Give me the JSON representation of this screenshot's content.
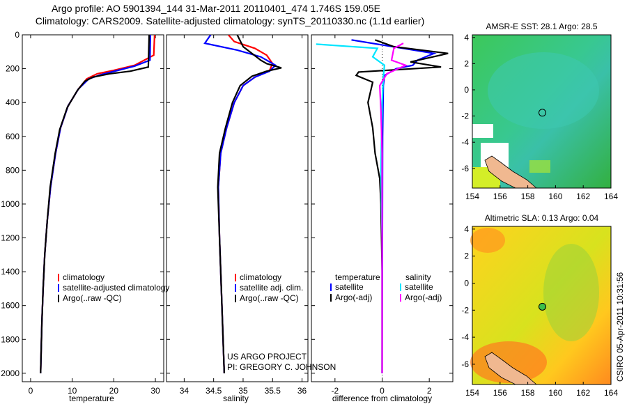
{
  "header": {
    "title_line1": "Argo profile: AO 5901394_144 31-Mar-2011 20110401_474 1.746S 159.05E",
    "title_line2": "Climatology: CARS2009. Satellite-adjusted climatology: synTS_20110330.nc (1.1d earlier)"
  },
  "colors": {
    "climatology": "#ff0000",
    "satellite": "#0000ff",
    "argo": "#000000",
    "sat_salinity": "#00e5ff",
    "argo_salinity": "#ff00ff"
  },
  "chart_data": [
    {
      "type": "line",
      "xlabel": "temperature",
      "ylabel": "",
      "xlim": [
        -2,
        32
      ],
      "ylim": [
        2050,
        0
      ],
      "xticks": [
        "0",
        "10",
        "20",
        "30"
      ],
      "yticks": [
        "0",
        "200",
        "400",
        "600",
        "800",
        "1000",
        "1200",
        "1400",
        "1600",
        "1800",
        "2000"
      ],
      "legend": {
        "placement": "lower-right",
        "entries": [
          "climatology",
          "satellite-adjusted climatology",
          "Argo(..raw -QC)"
        ]
      },
      "series": [
        {
          "name": "climatology",
          "color": "#ff0000",
          "points": [
            [
              29.8,
              0
            ],
            [
              29.6,
              120
            ],
            [
              25,
              180
            ],
            [
              20,
              210
            ],
            [
              16,
              230
            ],
            [
              13.5,
              260
            ],
            [
              11.5,
              320
            ],
            [
              9,
              420
            ],
            [
              7.2,
              550
            ],
            [
              6,
              700
            ],
            [
              4.8,
              900
            ],
            [
              4,
              1100
            ],
            [
              3.4,
              1300
            ],
            [
              3,
              1500
            ],
            [
              2.7,
              1700
            ],
            [
              2.5,
              1900
            ],
            [
              2.4,
              2000
            ]
          ]
        },
        {
          "name": "satellite-adjusted climatology",
          "color": "#0000ff",
          "points": [
            [
              28.8,
              0
            ],
            [
              28.7,
              150
            ],
            [
              25,
              185
            ],
            [
              21,
              210
            ],
            [
              17,
              235
            ],
            [
              14,
              260
            ],
            [
              11.5,
              320
            ],
            [
              9,
              420
            ],
            [
              7.2,
              550
            ],
            [
              6,
              700
            ],
            [
              4.8,
              900
            ],
            [
              4,
              1100
            ],
            [
              3.4,
              1300
            ],
            [
              3,
              1500
            ],
            [
              2.7,
              1700
            ],
            [
              2.5,
              1900
            ],
            [
              2.4,
              2000
            ]
          ]
        },
        {
          "name": "Argo(..raw -QC)",
          "color": "#000000",
          "points": [
            [
              28.5,
              0
            ],
            [
              28.3,
              190
            ],
            [
              24,
              215
            ],
            [
              19,
              230
            ],
            [
              15,
              250
            ],
            [
              13,
              275
            ],
            [
              11.2,
              330
            ],
            [
              8.8,
              430
            ],
            [
              7,
              560
            ],
            [
              5.9,
              700
            ],
            [
              4.7,
              900
            ],
            [
              4,
              1100
            ],
            [
              3.4,
              1300
            ],
            [
              3,
              1500
            ],
            [
              2.7,
              1700
            ],
            [
              2.5,
              1900
            ],
            [
              2.4,
              2000
            ]
          ]
        }
      ]
    },
    {
      "type": "line",
      "xlabel": "salinity",
      "ylabel": "",
      "xlim": [
        33.7,
        36.1
      ],
      "ylim": [
        2050,
        0
      ],
      "xticks": [
        "34",
        "34.5",
        "35",
        "35.5",
        "36"
      ],
      "legend": {
        "placement": "lower-right",
        "entries": [
          "climatology",
          "satellite adj. clim.",
          "Argo(..raw -QC)"
        ]
      },
      "series": [
        {
          "name": "climatology",
          "color": "#ff0000",
          "points": [
            [
              34.75,
              0
            ],
            [
              34.85,
              40
            ],
            [
              35.2,
              80
            ],
            [
              35.4,
              120
            ],
            [
              35.5,
              170
            ],
            [
              35.45,
              210
            ],
            [
              35.2,
              250
            ],
            [
              35.0,
              300
            ],
            [
              34.85,
              400
            ],
            [
              34.72,
              550
            ],
            [
              34.62,
              700
            ],
            [
              34.58,
              900
            ],
            [
              34.6,
              1200
            ],
            [
              34.63,
              1500
            ],
            [
              34.66,
              1800
            ],
            [
              34.68,
              2000
            ]
          ]
        },
        {
          "name": "satellite adj. clim.",
          "color": "#0000ff",
          "points": [
            [
              34.45,
              0
            ],
            [
              34.35,
              50
            ],
            [
              34.9,
              90
            ],
            [
              35.3,
              130
            ],
            [
              35.55,
              180
            ],
            [
              35.45,
              215
            ],
            [
              35.2,
              250
            ],
            [
              35.0,
              300
            ],
            [
              34.85,
              400
            ],
            [
              34.72,
              550
            ],
            [
              34.62,
              700
            ],
            [
              34.58,
              900
            ],
            [
              34.6,
              1200
            ],
            [
              34.63,
              1500
            ],
            [
              34.66,
              1800
            ],
            [
              34.68,
              2000
            ]
          ]
        },
        {
          "name": "Argo(..raw -QC)",
          "color": "#000000",
          "points": [
            [
              34.9,
              0
            ],
            [
              35.0,
              70
            ],
            [
              35.3,
              150
            ],
            [
              35.4,
              170
            ],
            [
              35.65,
              195
            ],
            [
              35.4,
              215
            ],
            [
              35.15,
              245
            ],
            [
              34.95,
              300
            ],
            [
              34.82,
              400
            ],
            [
              34.7,
              550
            ],
            [
              34.6,
              700
            ],
            [
              34.57,
              900
            ],
            [
              34.6,
              1200
            ],
            [
              34.63,
              1500
            ],
            [
              34.66,
              1800
            ],
            [
              34.68,
              2000
            ]
          ]
        }
      ]
    },
    {
      "type": "line",
      "xlabel": "difference from climatology",
      "ylabel": "",
      "xlim": [
        -3,
        3
      ],
      "ylim": [
        2050,
        0
      ],
      "xticks": [
        "-2",
        "0",
        "2"
      ],
      "legend": {
        "placement": "lower-right",
        "entries": [
          "temperature",
          "satellite",
          "Argo(-adj)",
          "salinity",
          "satellite",
          "Argo(-adj)"
        ]
      },
      "series": [
        {
          "name": "satellite",
          "color": "#0000ff",
          "points": [
            [
              -1.3,
              30
            ],
            [
              2.2,
              110
            ],
            [
              1.5,
              150
            ],
            [
              1.3,
              180
            ],
            [
              0.6,
              200
            ],
            [
              0.1,
              240
            ],
            [
              0.05,
              300
            ],
            [
              0.02,
              600
            ],
            [
              0,
              2000
            ]
          ]
        },
        {
          "name": "Argo(-adj)",
          "color": "#000000",
          "points": [
            [
              -0.3,
              30
            ],
            [
              0.5,
              70
            ],
            [
              2.8,
              110
            ],
            [
              1.2,
              160
            ],
            [
              2.5,
              190
            ],
            [
              -1,
              220
            ],
            [
              -1.1,
              240
            ],
            [
              -0.4,
              280
            ],
            [
              -0.6,
              400
            ],
            [
              -0.4,
              550
            ],
            [
              -0.3,
              700
            ],
            [
              -0.1,
              850
            ],
            [
              -0.05,
              1000
            ],
            [
              0,
              1400
            ],
            [
              0,
              2000
            ]
          ]
        },
        {
          "name": "salinity satellite",
          "color": "#00e5ff",
          "points": [
            [
              -2.8,
              55
            ],
            [
              -0.2,
              80
            ],
            [
              -0.4,
              130
            ],
            [
              0.1,
              180
            ],
            [
              0.05,
              250
            ],
            [
              0,
              400
            ],
            [
              -0.05,
              800
            ],
            [
              0,
              1200
            ],
            [
              0,
              2000
            ]
          ]
        },
        {
          "name": "salinity Argo(-adj)",
          "color": "#ff00ff",
          "points": [
            [
              0.9,
              50
            ],
            [
              0.5,
              80
            ],
            [
              0.4,
              150
            ],
            [
              1.0,
              180
            ],
            [
              0.2,
              230
            ],
            [
              -0.1,
              300
            ],
            [
              -0.05,
              450
            ],
            [
              0,
              700
            ],
            [
              0,
              1000
            ],
            [
              0,
              2000
            ]
          ]
        }
      ]
    },
    {
      "type": "heatmap",
      "title": "AMSR-E SST: 28.1 Argo: 28.5",
      "xlim": [
        154,
        164
      ],
      "ylim": [
        -7.5,
        4.2
      ],
      "xticks": [
        "154",
        "156",
        "158",
        "160",
        "162",
        "164"
      ],
      "yticks": [
        "4",
        "2",
        "0",
        "-2",
        "-4",
        "-6"
      ],
      "marker": {
        "lon": 159.05,
        "lat": -1.746
      }
    },
    {
      "type": "heatmap",
      "title": "Altimetric SLA: 0.13 Argo: 0.04",
      "xlim": [
        154,
        164
      ],
      "ylim": [
        -7.5,
        4.2
      ],
      "xticks": [
        "154",
        "156",
        "158",
        "160",
        "162",
        "164"
      ],
      "yticks": [
        "4",
        "2",
        "0",
        "-2",
        "-4",
        "-6"
      ],
      "marker": {
        "lon": 159.05,
        "lat": -1.746
      }
    }
  ],
  "footer": {
    "project": "US ARGO PROJECT",
    "pi": "PI: GREGORY C. JOHNSON",
    "stamp": "CSIRO 05-Apr-2011 10:31:56"
  }
}
